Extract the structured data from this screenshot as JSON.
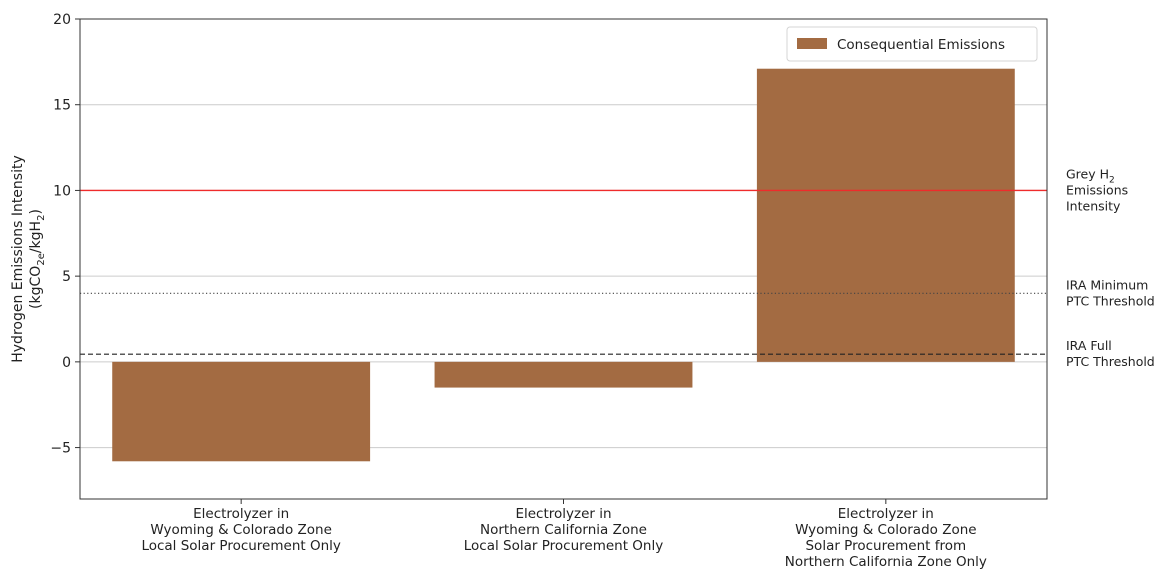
{
  "chart_data": {
    "type": "bar",
    "categories": [
      [
        "Electrolyzer in",
        "Wyoming & Colorado Zone",
        "Local Solar Procurement Only"
      ],
      [
        "Electrolyzer in",
        "Northern California Zone",
        "Local Solar Procurement Only"
      ],
      [
        "Electrolyzer in",
        "Wyoming & Colorado Zone",
        "Solar Procurement from",
        "Northern California Zone Only"
      ]
    ],
    "series": [
      {
        "name": "Consequential Emissions",
        "values": [
          -5.8,
          -1.5,
          17.1
        ],
        "color": "#a36b42"
      }
    ],
    "ylabel": {
      "line1": "Hydrogen Emissions Intensity",
      "line2_prefix": "(kgCO",
      "line2_sub1": "2e",
      "line2_mid": "/kgH",
      "line2_sub2": "2",
      "line2_suffix": ")"
    },
    "ylim": [
      -8,
      20
    ],
    "yticks": [
      {
        "value": -5,
        "label": "−5"
      },
      {
        "value": 0,
        "label": "0"
      },
      {
        "value": 5,
        "label": "5"
      },
      {
        "value": 10,
        "label": "10"
      },
      {
        "value": 15,
        "label": "15"
      },
      {
        "value": 20,
        "label": "20"
      }
    ],
    "grid": true,
    "legend": {
      "position": "top-right"
    },
    "reference_lines": [
      {
        "value": 10,
        "style": "solid",
        "color": "#ef2b2b",
        "label": [
          [
            "Grey H",
            "2",
            ""
          ],
          [
            "Emissions",
            "",
            ""
          ],
          [
            "Intensity",
            "",
            ""
          ]
        ]
      },
      {
        "value": 4,
        "style": "dotted",
        "color": "#444444",
        "label": [
          [
            "IRA Minimum",
            "",
            ""
          ],
          [
            "PTC Threshold",
            "",
            ""
          ]
        ]
      },
      {
        "value": 0.45,
        "style": "dashed",
        "color": "#222222",
        "label": [
          [
            "IRA Full",
            "",
            ""
          ],
          [
            "PTC Threshold",
            "",
            ""
          ]
        ]
      }
    ]
  }
}
